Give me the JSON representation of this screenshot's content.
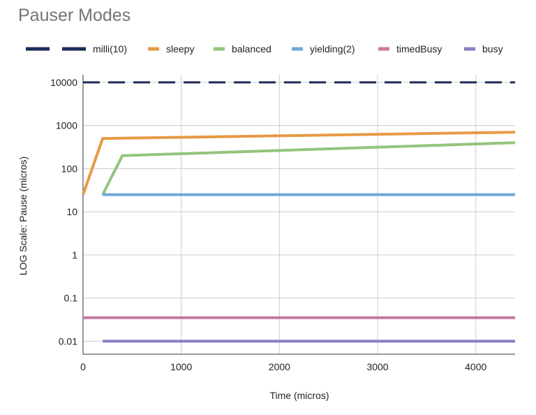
{
  "chart_data": {
    "type": "line",
    "title": "Pauser Modes",
    "xlabel": "Time (micros)",
    "ylabel": "LOG Scale: Pause (micros)",
    "yscale": "log",
    "xlim": [
      0,
      4400
    ],
    "ylim": [
      0.005,
      15000
    ],
    "x_ticks": [
      0,
      1000,
      2000,
      3000,
      4000
    ],
    "x_tick_labels": [
      "0",
      "1000",
      "2000",
      "3000",
      "4000"
    ],
    "y_ticks": [
      0.01,
      0.1,
      1,
      10,
      100,
      1000,
      10000
    ],
    "y_tick_labels": [
      "0.01",
      "0.1",
      "1",
      "10",
      "100",
      "1000",
      "10000"
    ],
    "grid": true,
    "legend_position": "top",
    "series": [
      {
        "name": "milli(10)",
        "color": "#1f2a5a",
        "dashed": true,
        "points": [
          [
            0,
            10000
          ],
          [
            4400,
            10000
          ]
        ]
      },
      {
        "name": "sleepy",
        "color": "#e69a45",
        "dashed": false,
        "points": [
          [
            0,
            25
          ],
          [
            200,
            500
          ],
          [
            4400,
            700
          ]
        ]
      },
      {
        "name": "balanced",
        "color": "#93c47d",
        "dashed": false,
        "points": [
          [
            200,
            25
          ],
          [
            400,
            200
          ],
          [
            4400,
            400
          ]
        ]
      },
      {
        "name": "yielding(2)",
        "color": "#6fa8dc",
        "dashed": false,
        "points": [
          [
            200,
            25
          ],
          [
            4400,
            25
          ]
        ]
      },
      {
        "name": "timedBusy",
        "color": "#c27ba0",
        "dashed": false,
        "points": [
          [
            0,
            0.035
          ],
          [
            4400,
            0.035
          ]
        ]
      },
      {
        "name": "busy",
        "color": "#8e7cc3",
        "dashed": false,
        "points": [
          [
            200,
            0.01
          ],
          [
            4400,
            0.01
          ]
        ]
      }
    ]
  }
}
